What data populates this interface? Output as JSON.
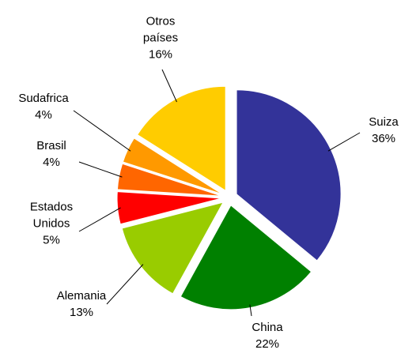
{
  "chart_data": {
    "type": "pie",
    "categories": [
      "Suiza",
      "China",
      "Alemania",
      "Estados Unidos",
      "Brasil",
      "Sudafrica",
      "Otros países"
    ],
    "values": [
      36,
      22,
      13,
      5,
      4,
      4,
      16
    ],
    "value_labels": [
      "36%",
      "22%",
      "13%",
      "5%",
      "4%",
      "4%",
      "16%"
    ],
    "colors": [
      "#333399",
      "#008000",
      "#99cc00",
      "#ff0000",
      "#ff6600",
      "#ff9900",
      "#ffcc00"
    ]
  }
}
